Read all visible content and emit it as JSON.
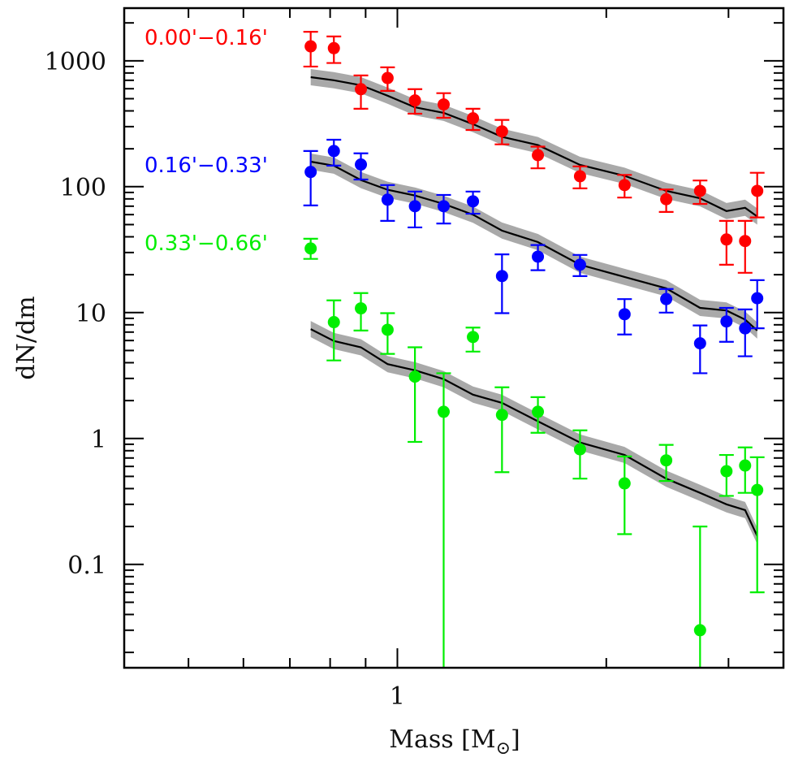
{
  "chart_data": {
    "type": "scatter",
    "title": "",
    "xlabel": "Mass [M",
    "xlabel_subscript": "⊙",
    "xlabel_close": "]",
    "ylabel": "dN/dm",
    "xscale": "log",
    "yscale": "log",
    "xlim": [
      0.404,
      3.6
    ],
    "ylim": [
      0.0151,
      2620
    ],
    "grid": false,
    "x_ticks_major": [
      {
        "value": 1,
        "label": "1"
      }
    ],
    "x_ticks_minor": [
      0.5,
      0.6,
      0.7,
      0.8,
      0.9,
      2,
      3
    ],
    "y_ticks_major": [
      {
        "value": 0.1,
        "label": "0.1"
      },
      {
        "value": 1,
        "label": "1"
      },
      {
        "value": 10,
        "label": "10"
      },
      {
        "value": 100,
        "label": "100"
      },
      {
        "value": 1000,
        "label": "1000"
      }
    ],
    "model_band_fraction": 0.16,
    "x": [
      0.75,
      0.81,
      0.886,
      0.968,
      1.06,
      1.166,
      1.285,
      1.415,
      1.594,
      1.833,
      2.125,
      2.44,
      2.73,
      2.98,
      3.17,
      3.3
    ],
    "series": [
      {
        "name": "0.00'−0.16'",
        "color": "#ff0000",
        "values": [
          1303,
          1260,
          595,
          730,
          484,
          450,
          349,
          275,
          178,
          121,
          103,
          79.5,
          92.6,
          38.1,
          37.0,
          92.6
        ],
        "err_lo": [
          900,
          960,
          416,
          577,
          380,
          353,
          282,
          217,
          140,
          97,
          82,
          63,
          73,
          24,
          20.7,
          57
        ],
        "err_hi": [
          1700,
          1560,
          765,
          887,
          595,
          553,
          416,
          339,
          208,
          145,
          124,
          95,
          112,
          53.5,
          53.5,
          129
        ],
        "model": [
          741,
          700,
          640,
          528,
          427,
          386,
          314,
          249,
          214,
          149,
          122,
          92.6,
          81,
          64,
          68,
          58
        ]
      },
      {
        "name": "0.16'−0.33'",
        "color": "#0000ff",
        "values": [
          131,
          192,
          150,
          78.9,
          70,
          70,
          76.5,
          19.5,
          27.8,
          24.0,
          9.7,
          12.8,
          5.7,
          8.5,
          7.5,
          13.0
        ],
        "err_lo": [
          71,
          147,
          114,
          53.5,
          47.5,
          51,
          61,
          9.9,
          21.7,
          19.5,
          6.7,
          10.0,
          3.3,
          5.86,
          4.5,
          7.5
        ],
        "err_hi": [
          192,
          236,
          184,
          103,
          91.5,
          86,
          91.5,
          29,
          34.4,
          28.7,
          12.8,
          15.4,
          7.9,
          10.9,
          10.6,
          18.1
        ],
        "model": [
          158,
          147,
          113,
          94.5,
          85,
          73,
          60,
          44.8,
          36.3,
          24,
          19.2,
          15.6,
          10.9,
          10.4,
          8.8,
          7.2
        ]
      },
      {
        "name": "0.33'−0.66'",
        "color": "#00ee00",
        "values": [
          32.3,
          8.4,
          10.8,
          7.3,
          3.1,
          1.63,
          6.4,
          1.54,
          1.63,
          0.82,
          0.44,
          0.67,
          0.03,
          0.55,
          0.61,
          0.39
        ],
        "err_lo": [
          26.7,
          4.17,
          7.2,
          4.7,
          0.94,
          0.01,
          4.9,
          0.54,
          1.11,
          0.48,
          0.174,
          0.46,
          0.01,
          0.35,
          0.37,
          0.06
        ],
        "err_hi": [
          38.6,
          12.5,
          14.3,
          9.9,
          5.3,
          3.3,
          7.6,
          2.55,
          2.13,
          1.16,
          0.72,
          0.89,
          0.2,
          0.74,
          0.85,
          0.71
        ],
        "model": [
          7.4,
          5.95,
          5.3,
          3.9,
          3.48,
          2.96,
          2.23,
          1.92,
          1.37,
          0.93,
          0.74,
          0.48,
          0.37,
          0.3,
          0.27,
          0.168
        ]
      }
    ],
    "legend": {
      "placement": "top-left",
      "style": "colored-text"
    }
  }
}
